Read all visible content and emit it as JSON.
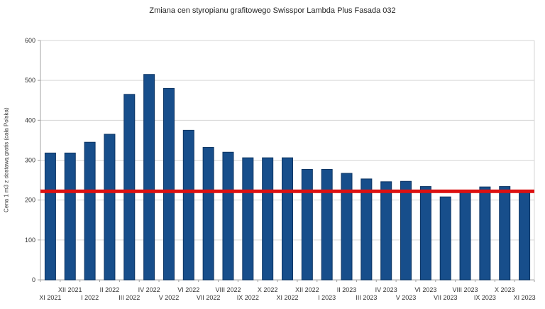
{
  "title": "Zmiana cen styropianu grafitowego Swisspor Lambda Plus Fasada 032",
  "chart_data": {
    "type": "bar",
    "title": "Zmiana cen styropianu grafitowego Swisspor Lambda Plus Fasada 032",
    "xlabel": "",
    "ylabel": "Cena 1 m3 z dostawą gratis (cała Polska)",
    "ylim": [
      0,
      600
    ],
    "ytick_interval": 100,
    "grid": true,
    "legend": "none",
    "categories": [
      "XI 2021",
      "XII 2021",
      "I 2022",
      "II 2022",
      "III 2022",
      "IV 2022",
      "V 2022",
      "VI 2022",
      "VII 2022",
      "VIII 2022",
      "IX 2022",
      "X 2022",
      "XI 2022",
      "XII 2022",
      "I 2023",
      "II 2023",
      "III 2023",
      "IV 2023",
      "V 2023",
      "VI 2023",
      "VII 2023",
      "VIII 2023",
      "IX 2023",
      "X 2023",
      "XI 2023"
    ],
    "values": [
      318,
      318,
      345,
      365,
      465,
      515,
      480,
      375,
      332,
      320,
      306,
      306,
      306,
      277,
      277,
      267,
      253,
      246,
      247,
      234,
      208,
      220,
      233,
      234,
      221
    ],
    "reference_line": {
      "value": 222
    }
  },
  "colors": {
    "bar_fill": "#174e8b",
    "bar_border": "#0d3563",
    "reference_line": "#dd1111",
    "grid": "#d6d6d6",
    "axis": "#a3a3a3",
    "tick_text": "#333333"
  }
}
